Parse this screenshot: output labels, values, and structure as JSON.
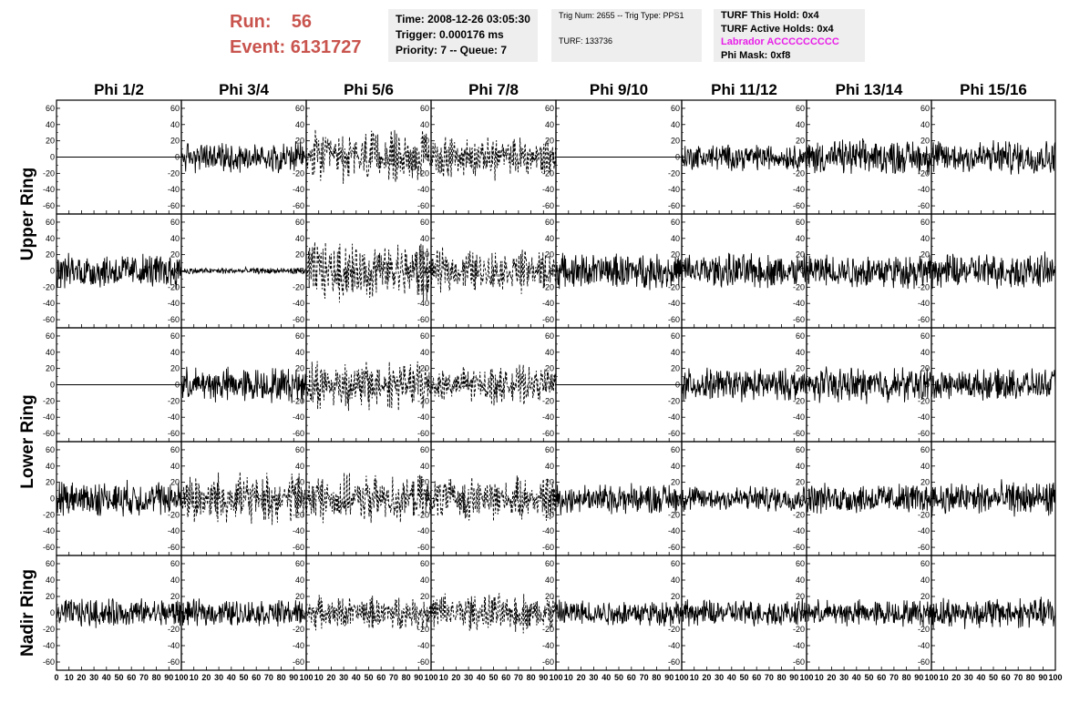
{
  "header": {
    "run_label": "Run:",
    "run_value": "56",
    "event_label": "Event:",
    "event_value": "6131727"
  },
  "time_box": {
    "time": "Time: 2008-12-26 03:05:30",
    "trigger": "Trigger: 0.000176 ms",
    "priority": "Priority: 7 -- Queue: 7"
  },
  "trig_box": {
    "trig": "Trig Num: 2655 -- Trig Type: PPS1",
    "turf": "TURF: 133736"
  },
  "turf_box": {
    "hold": "TURF This Hold: 0x4",
    "active": "TURF Active Holds: 0x4",
    "labrador": "Labrador ACCCCCCCCC",
    "phi_mask": "Phi Mask: 0xf8"
  },
  "colors": {
    "run_text": "#c9544e",
    "labrador_text": "#e81ee8",
    "box_background": "#eeeeee",
    "trace": "#000000"
  },
  "chart_data": {
    "type": "line",
    "columns": [
      "Phi 1/2",
      "Phi 3/4",
      "Phi 5/6",
      "Phi 7/8",
      "Phi 9/10",
      "Phi 11/12",
      "Phi 13/14",
      "Phi 15/16"
    ],
    "ring_labels": [
      {
        "name": "Upper Ring",
        "rows": [
          0,
          1
        ]
      },
      {
        "name": "Lower Ring",
        "rows": [
          2,
          3
        ]
      },
      {
        "name": "Nadir Ring",
        "rows": [
          4
        ]
      }
    ],
    "rows": 5,
    "xlim": [
      0,
      100
    ],
    "ylim": [
      -70,
      70
    ],
    "yticks": [
      -60,
      -40,
      -20,
      0,
      20,
      40,
      60
    ],
    "xticks": [
      0,
      10,
      20,
      30,
      40,
      50,
      60,
      70,
      80,
      90,
      100
    ],
    "x_tick_labels": [
      "0",
      "10",
      "20",
      "30",
      "40",
      "50",
      "60",
      "70",
      "80",
      "90",
      "100"
    ],
    "panels": [
      {
        "row": 0,
        "col": 0,
        "style": "flat",
        "amplitude": 0
      },
      {
        "row": 0,
        "col": 1,
        "style": "solid",
        "amplitude": 14
      },
      {
        "row": 0,
        "col": 2,
        "style": "dashed",
        "amplitude": 22
      },
      {
        "row": 0,
        "col": 3,
        "style": "dashed",
        "amplitude": 18
      },
      {
        "row": 0,
        "col": 4,
        "style": "flat",
        "amplitude": 0
      },
      {
        "row": 0,
        "col": 5,
        "style": "solid",
        "amplitude": 12
      },
      {
        "row": 0,
        "col": 6,
        "style": "solid",
        "amplitude": 16
      },
      {
        "row": 0,
        "col": 7,
        "style": "solid",
        "amplitude": 16
      },
      {
        "row": 1,
        "col": 0,
        "style": "solid",
        "amplitude": 16
      },
      {
        "row": 1,
        "col": 1,
        "style": "solid",
        "amplitude": 3
      },
      {
        "row": 1,
        "col": 2,
        "style": "dashed",
        "amplitude": 26
      },
      {
        "row": 1,
        "col": 3,
        "style": "dashed",
        "amplitude": 18
      },
      {
        "row": 1,
        "col": 4,
        "style": "solid",
        "amplitude": 16
      },
      {
        "row": 1,
        "col": 5,
        "style": "solid",
        "amplitude": 16
      },
      {
        "row": 1,
        "col": 6,
        "style": "solid",
        "amplitude": 16
      },
      {
        "row": 1,
        "col": 7,
        "style": "solid",
        "amplitude": 16
      },
      {
        "row": 2,
        "col": 0,
        "style": "flat",
        "amplitude": 0
      },
      {
        "row": 2,
        "col": 1,
        "style": "solid",
        "amplitude": 16
      },
      {
        "row": 2,
        "col": 2,
        "style": "dashed",
        "amplitude": 22
      },
      {
        "row": 2,
        "col": 3,
        "style": "dashed",
        "amplitude": 16
      },
      {
        "row": 2,
        "col": 4,
        "style": "flat",
        "amplitude": 0
      },
      {
        "row": 2,
        "col": 5,
        "style": "solid",
        "amplitude": 15
      },
      {
        "row": 2,
        "col": 6,
        "style": "solid",
        "amplitude": 16
      },
      {
        "row": 2,
        "col": 7,
        "style": "solid",
        "amplitude": 14
      },
      {
        "row": 3,
        "col": 0,
        "style": "solid",
        "amplitude": 16
      },
      {
        "row": 3,
        "col": 1,
        "style": "dashed",
        "amplitude": 22
      },
      {
        "row": 3,
        "col": 2,
        "style": "dashed",
        "amplitude": 20
      },
      {
        "row": 3,
        "col": 3,
        "style": "dashed",
        "amplitude": 18
      },
      {
        "row": 3,
        "col": 4,
        "style": "solid",
        "amplitude": 14
      },
      {
        "row": 3,
        "col": 5,
        "style": "solid",
        "amplitude": 12
      },
      {
        "row": 3,
        "col": 6,
        "style": "solid",
        "amplitude": 14
      },
      {
        "row": 3,
        "col": 7,
        "style": "solid",
        "amplitude": 16
      },
      {
        "row": 4,
        "col": 0,
        "style": "solid",
        "amplitude": 13
      },
      {
        "row": 4,
        "col": 1,
        "style": "solid",
        "amplitude": 12
      },
      {
        "row": 4,
        "col": 2,
        "style": "dashed",
        "amplitude": 14
      },
      {
        "row": 4,
        "col": 3,
        "style": "dashed",
        "amplitude": 17
      },
      {
        "row": 4,
        "col": 4,
        "style": "solid",
        "amplitude": 12
      },
      {
        "row": 4,
        "col": 5,
        "style": "solid",
        "amplitude": 12
      },
      {
        "row": 4,
        "col": 6,
        "style": "solid",
        "amplitude": 12
      },
      {
        "row": 4,
        "col": 7,
        "style": "solid",
        "amplitude": 14
      }
    ]
  }
}
